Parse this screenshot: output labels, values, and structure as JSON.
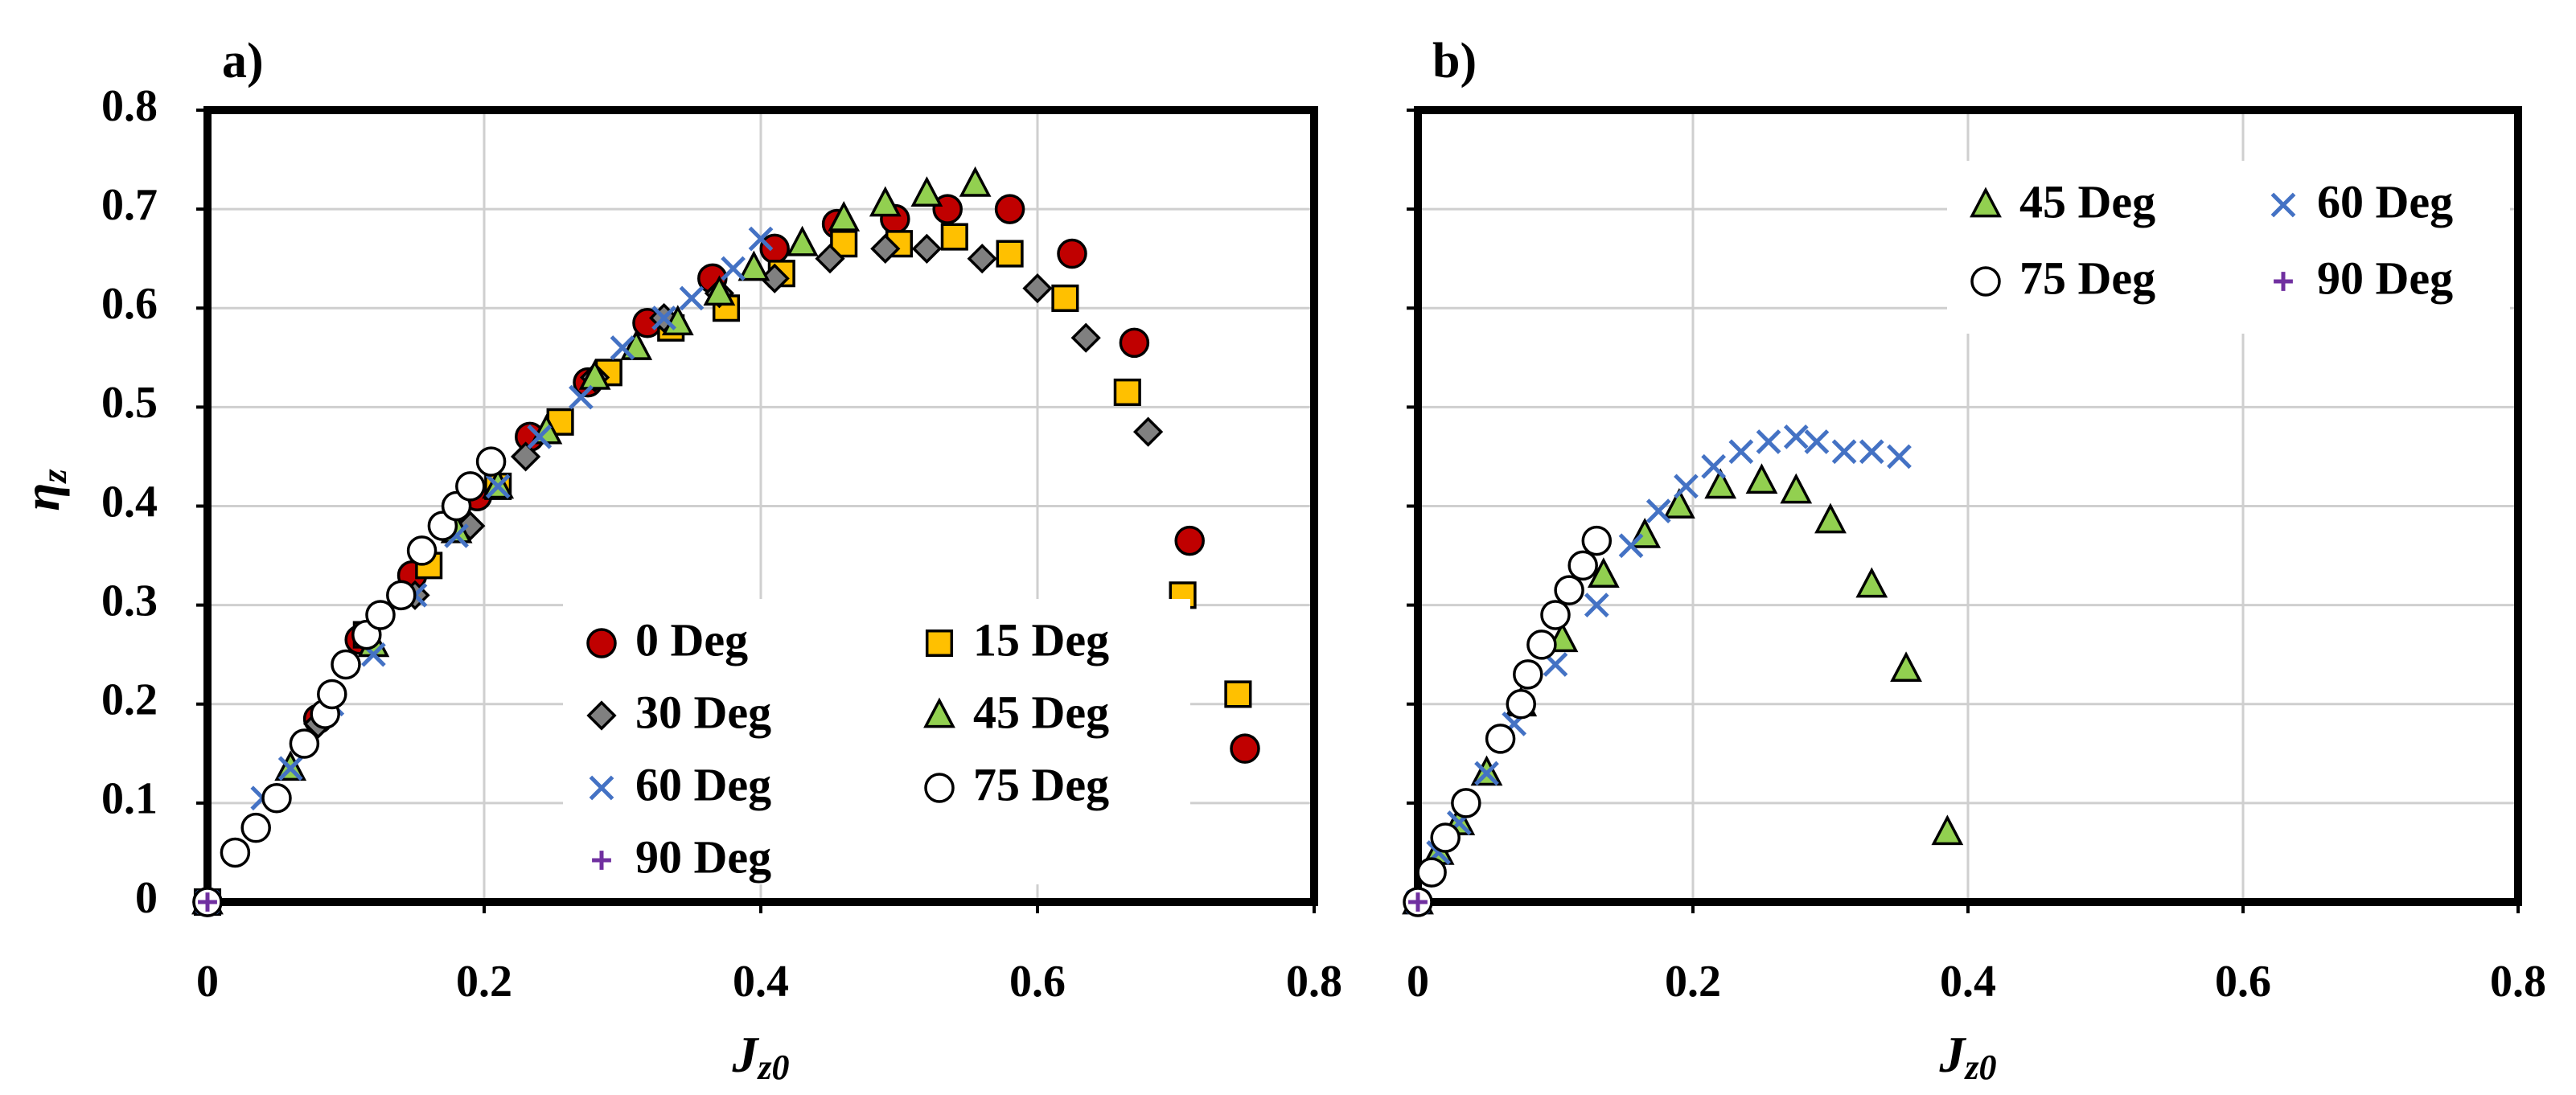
{
  "chart_data": [
    {
      "type": "scatter",
      "title": "a)",
      "xlabel": {
        "symbol": "J",
        "subscript": "z0"
      },
      "ylabel": {
        "symbol": "η",
        "subscript": "z"
      },
      "xlim": [
        0,
        0.8
      ],
      "ylim": [
        0,
        0.8
      ],
      "xticks": [
        0,
        0.2,
        0.4,
        0.6,
        0.8
      ],
      "yticks": [
        0,
        0.1,
        0.2,
        0.3,
        0.4,
        0.5,
        0.6,
        0.7,
        0.8
      ],
      "show_ytick_labels": true,
      "grid": true,
      "legend": "lower center",
      "series": [
        {
          "name": "0 Deg",
          "marker": "circle",
          "color": "#c00000",
          "x": [
            0,
            0.08,
            0.11,
            0.148,
            0.195,
            0.233,
            0.275,
            0.318,
            0.365,
            0.41,
            0.455,
            0.497,
            0.535,
            0.58,
            0.625,
            0.67,
            0.71,
            0.75
          ],
          "values": [
            0,
            0.185,
            0.265,
            0.33,
            0.41,
            0.47,
            0.525,
            0.585,
            0.63,
            0.66,
            0.685,
            0.69,
            0.7,
            0.7,
            0.655,
            0.565,
            0.365,
            0.155
          ]
        },
        {
          "name": "15 Deg",
          "marker": "square",
          "color": "#ffc000",
          "x": [
            0,
            0.115,
            0.16,
            0.21,
            0.255,
            0.29,
            0.335,
            0.375,
            0.415,
            0.46,
            0.5,
            0.54,
            0.58,
            0.62,
            0.665,
            0.705,
            0.745
          ],
          "values": [
            0,
            0.27,
            0.34,
            0.42,
            0.485,
            0.535,
            0.58,
            0.6,
            0.635,
            0.665,
            0.665,
            0.672,
            0.655,
            0.61,
            0.515,
            0.31,
            0.21
          ]
        },
        {
          "name": "30 Deg",
          "marker": "diamond",
          "color": "#808080",
          "x": [
            0,
            0.08,
            0.15,
            0.19,
            0.23,
            0.28,
            0.33,
            0.37,
            0.41,
            0.45,
            0.49,
            0.52,
            0.56,
            0.6,
            0.635,
            0.68
          ],
          "values": [
            0,
            0.18,
            0.31,
            0.38,
            0.45,
            0.53,
            0.59,
            0.615,
            0.63,
            0.65,
            0.66,
            0.66,
            0.65,
            0.62,
            0.57,
            0.475
          ]
        },
        {
          "name": "45 Deg",
          "marker": "triangle",
          "color": "#92d050",
          "x": [
            0,
            0.06,
            0.12,
            0.18,
            0.21,
            0.245,
            0.28,
            0.31,
            0.34,
            0.37,
            0.395,
            0.43,
            0.46,
            0.49,
            0.52,
            0.555
          ],
          "values": [
            0,
            0.135,
            0.26,
            0.375,
            0.42,
            0.475,
            0.53,
            0.56,
            0.585,
            0.615,
            0.64,
            0.665,
            0.69,
            0.705,
            0.715,
            0.725
          ]
        },
        {
          "name": "60 Deg",
          "marker": "x",
          "color": "#4472c4",
          "x": [
            0,
            0.04,
            0.06,
            0.09,
            0.12,
            0.15,
            0.18,
            0.21,
            0.24,
            0.27,
            0.3,
            0.33,
            0.35,
            0.38,
            0.4
          ],
          "values": [
            0,
            0.105,
            0.135,
            0.2,
            0.25,
            0.31,
            0.37,
            0.42,
            0.47,
            0.51,
            0.56,
            0.59,
            0.61,
            0.64,
            0.67
          ]
        },
        {
          "name": "75 Deg",
          "marker": "circle",
          "color": "#ffffff",
          "x": [
            0,
            0.02,
            0.035,
            0.05,
            0.07,
            0.085,
            0.09,
            0.1,
            0.115,
            0.125,
            0.14,
            0.155,
            0.17,
            0.18,
            0.19,
            0.205
          ],
          "values": [
            0,
            0.05,
            0.075,
            0.105,
            0.16,
            0.19,
            0.21,
            0.24,
            0.27,
            0.29,
            0.31,
            0.355,
            0.38,
            0.4,
            0.42,
            0.445
          ]
        },
        {
          "name": "90 Deg",
          "marker": "plus",
          "color": "#7030a0",
          "x": [
            0
          ],
          "values": [
            0
          ]
        }
      ]
    },
    {
      "type": "scatter",
      "title": "b)",
      "xlabel": {
        "symbol": "J",
        "subscript": "z0"
      },
      "xlim": [
        0,
        0.8
      ],
      "ylim": [
        0,
        0.8
      ],
      "xticks": [
        0,
        0.2,
        0.4,
        0.6,
        0.8
      ],
      "yticks": [
        0,
        0.1,
        0.2,
        0.3,
        0.4,
        0.5,
        0.6,
        0.7,
        0.8
      ],
      "show_ytick_labels": false,
      "grid": true,
      "legend": "upper right",
      "series": [
        {
          "name": "45 Deg",
          "marker": "triangle",
          "color": "#92d050",
          "x": [
            0,
            0.015,
            0.03,
            0.05,
            0.075,
            0.105,
            0.135,
            0.165,
            0.19,
            0.22,
            0.25,
            0.275,
            0.3,
            0.33,
            0.355,
            0.385
          ],
          "values": [
            0,
            0.05,
            0.08,
            0.13,
            0.2,
            0.265,
            0.33,
            0.37,
            0.4,
            0.42,
            0.425,
            0.415,
            0.385,
            0.32,
            0.235,
            0.07
          ]
        },
        {
          "name": "60 Deg",
          "marker": "x",
          "color": "#4472c4",
          "x": [
            0,
            0.015,
            0.03,
            0.05,
            0.07,
            0.1,
            0.13,
            0.155,
            0.175,
            0.195,
            0.215,
            0.235,
            0.255,
            0.275,
            0.29,
            0.31,
            0.33,
            0.35
          ],
          "values": [
            0,
            0.05,
            0.08,
            0.13,
            0.18,
            0.24,
            0.3,
            0.36,
            0.395,
            0.42,
            0.44,
            0.455,
            0.465,
            0.47,
            0.465,
            0.455,
            0.455,
            0.45
          ]
        },
        {
          "name": "75 Deg",
          "marker": "circle",
          "color": "#ffffff",
          "x": [
            0,
            0.01,
            0.02,
            0.035,
            0.06,
            0.075,
            0.08,
            0.09,
            0.1,
            0.11,
            0.12,
            0.13
          ],
          "values": [
            0,
            0.03,
            0.065,
            0.1,
            0.165,
            0.2,
            0.23,
            0.26,
            0.29,
            0.315,
            0.34,
            0.365
          ]
        },
        {
          "name": "90 Deg",
          "marker": "plus",
          "color": "#7030a0",
          "x": [
            0
          ],
          "values": [
            0
          ]
        }
      ]
    }
  ]
}
